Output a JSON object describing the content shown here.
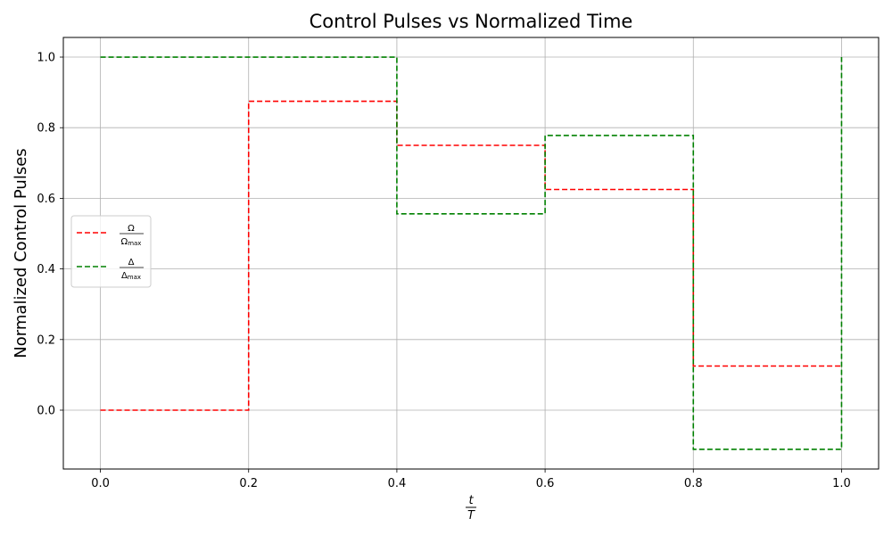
{
  "chart_data": {
    "type": "line",
    "drawstyle": "steps-post",
    "title": "Control Pulses vs Normalized Time",
    "xlabel": {
      "numerator": "t",
      "denominator": "T"
    },
    "ylabel": "Normalized Control Pulses",
    "xlim": [
      -0.05,
      1.05
    ],
    "ylim": [
      -0.1667,
      1.0556
    ],
    "xticks": [
      0.0,
      0.2,
      0.4,
      0.6,
      0.8,
      1.0
    ],
    "xtick_labels": [
      "0.0",
      "0.2",
      "0.4",
      "0.6",
      "0.8",
      "1.0"
    ],
    "yticks": [
      0.0,
      0.2,
      0.4,
      0.6,
      0.8,
      1.0
    ],
    "ytick_labels": [
      "0.0",
      "0.2",
      "0.4",
      "0.6",
      "0.8",
      "1.0"
    ],
    "grid": true,
    "legend_position": "center-left",
    "x": [
      0.0,
      0.2,
      0.4,
      0.6,
      0.8,
      1.0
    ],
    "series": [
      {
        "label": {
          "numerator": "Ω",
          "denominator_base": "Ω",
          "denominator_sub": "max"
        },
        "color": "#ff0000",
        "linestyle": "dashed",
        "values": [
          0.0,
          0.875,
          0.75,
          0.625,
          0.125,
          0.125
        ]
      },
      {
        "label": {
          "numerator": "Δ",
          "denominator_base": "Δ",
          "denominator_sub": "max"
        },
        "color": "#008000",
        "linestyle": "dashed",
        "values": [
          1.0,
          1.0,
          0.556,
          0.778,
          -0.111,
          1.0
        ]
      }
    ]
  }
}
